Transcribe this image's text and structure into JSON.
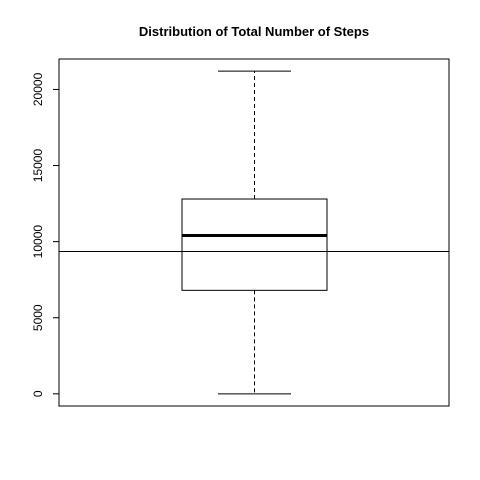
{
  "chart_data": {
    "type": "boxplot",
    "title": "Distribution of Total Number of Steps",
    "xlabel": "",
    "ylabel": "",
    "ylim": [
      -800,
      22000
    ],
    "yticks": [
      0,
      5000,
      10000,
      15000,
      20000
    ],
    "ytick_labels": [
      "0",
      "5000",
      "10000",
      "15000",
      "20000"
    ],
    "box": {
      "min": 0,
      "q1": 6800,
      "median": 10400,
      "q3": 12800,
      "max": 21200
    },
    "reference_line": {
      "y": 9350
    },
    "grid": false,
    "legend": "none",
    "colors": {
      "line": "#000000",
      "background": "#ffffff"
    }
  }
}
